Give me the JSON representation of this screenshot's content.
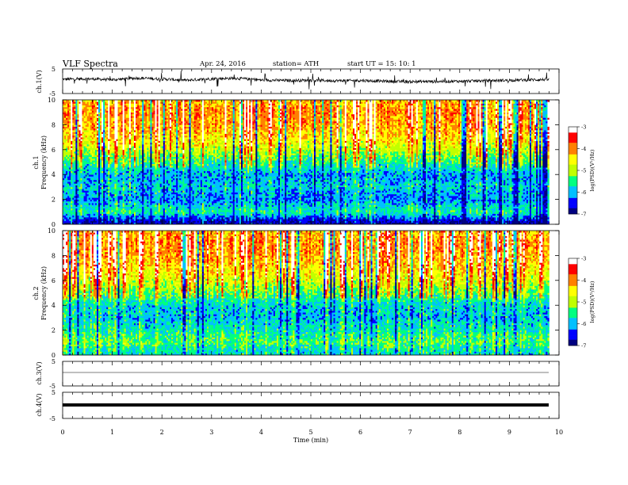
{
  "header": {
    "title": "VLF  Spectra",
    "date": "Apr. 24, 2016",
    "station": "station= ATH",
    "start": "start  UT =    15: 10: 1"
  },
  "chart_data": [
    {
      "type": "line",
      "name": "ch1-waveform",
      "ylabel": "ch.1(V)",
      "ylim": [
        -5,
        5
      ],
      "yticks": [
        "5",
        "-5"
      ],
      "xlim": [
        0,
        10
      ],
      "x": [
        0.0,
        0.5,
        1.0,
        1.5,
        2.0,
        2.5,
        3.0,
        3.5,
        4.0,
        4.5,
        5.0,
        5.5,
        6.0,
        6.5,
        7.0,
        7.5,
        8.0,
        8.5,
        9.0,
        9.5,
        9.8
      ],
      "y": [
        0.8,
        1.0,
        0.6,
        1.3,
        0.9,
        0.4,
        1.0,
        1.2,
        0.5,
        0.3,
        0.4,
        0.2,
        0.3,
        0.0,
        -0.2,
        -0.1,
        0.0,
        0.2,
        0.4,
        0.6,
        0.7
      ]
    },
    {
      "type": "heatmap",
      "name": "ch1-spectrogram",
      "ylabel_top": "ch.1",
      "ylabel": "Frequency  (kHz)",
      "ylim": [
        0,
        10
      ],
      "yticks": [
        "0",
        "2",
        "4",
        "6",
        "8",
        "10"
      ],
      "xlim": [
        0,
        10
      ],
      "colorbar": {
        "label": "log(PSD)(V²/Hz)",
        "range": [
          -7,
          -3
        ],
        "ticks": [
          "-7",
          "-6",
          "-5",
          "-4",
          "-3"
        ],
        "colors": [
          "#000080",
          "#0000ff",
          "#00c0ff",
          "#00ff80",
          "#c0ff00",
          "#ffff00",
          "#ff8000",
          "#ff0000",
          "#ffffff"
        ]
      },
      "mean_log_psd_by_freq_khz": [
        {
          "f": 0.25,
          "v": -6.8
        },
        {
          "f": 1.0,
          "v": -5.6
        },
        {
          "f": 2.0,
          "v": -6.2
        },
        {
          "f": 3.0,
          "v": -5.9
        },
        {
          "f": 4.0,
          "v": -6.1
        },
        {
          "f": 5.0,
          "v": -5.5
        },
        {
          "f": 6.0,
          "v": -4.9
        },
        {
          "f": 7.0,
          "v": -4.4
        },
        {
          "f": 8.0,
          "v": -4.1
        },
        {
          "f": 9.0,
          "v": -4.0
        },
        {
          "f": 10.0,
          "v": -4.2
        }
      ]
    },
    {
      "type": "heatmap",
      "name": "ch2-spectrogram",
      "ylabel_top": "ch.2",
      "ylabel": "Frequency  (kHz)",
      "ylim": [
        0,
        10
      ],
      "yticks": [
        "0",
        "2",
        "4",
        "6",
        "8",
        "10"
      ],
      "xlim": [
        0,
        10
      ],
      "colorbar": {
        "label": "log(PSD)(V²/Hz)",
        "range": [
          -7,
          -3
        ],
        "ticks": [
          "-7",
          "-6",
          "-5",
          "-4",
          "-3"
        ],
        "colors": [
          "#000080",
          "#0000ff",
          "#00c0ff",
          "#00ff80",
          "#c0ff00",
          "#ffff00",
          "#ff8000",
          "#ff0000",
          "#ffffff"
        ]
      },
      "mean_log_psd_by_freq_khz": [
        {
          "f": 0.25,
          "v": -5.8
        },
        {
          "f": 1.0,
          "v": -5.4
        },
        {
          "f": 2.0,
          "v": -5.7
        },
        {
          "f": 3.0,
          "v": -6.0
        },
        {
          "f": 4.0,
          "v": -5.9
        },
        {
          "f": 5.0,
          "v": -5.3
        },
        {
          "f": 6.0,
          "v": -4.8
        },
        {
          "f": 7.0,
          "v": -4.4
        },
        {
          "f": 8.0,
          "v": -4.1
        },
        {
          "f": 9.0,
          "v": -4.0
        },
        {
          "f": 10.0,
          "v": -4.2
        }
      ]
    },
    {
      "type": "line",
      "name": "ch3-waveform",
      "ylabel": "ch.3(V)",
      "ylim": [
        -5,
        5
      ],
      "yticks": [
        "5",
        "-5"
      ],
      "xlim": [
        0,
        10
      ],
      "x": [
        0,
        9.8
      ],
      "y": [
        0,
        0
      ]
    },
    {
      "type": "line",
      "name": "ch4-waveform",
      "ylabel": "ch.4(V)",
      "ylim": [
        -5,
        5
      ],
      "yticks": [
        "5",
        "-5"
      ],
      "xlim": [
        0,
        10
      ],
      "x": [
        0,
        9.8
      ],
      "y": [
        0,
        0
      ]
    }
  ],
  "xaxis": {
    "label": "Time  (min)",
    "ticks": [
      "0",
      "1",
      "2",
      "3",
      "4",
      "5",
      "6",
      "7",
      "8",
      "9",
      "10"
    ],
    "range": [
      0,
      10
    ]
  }
}
